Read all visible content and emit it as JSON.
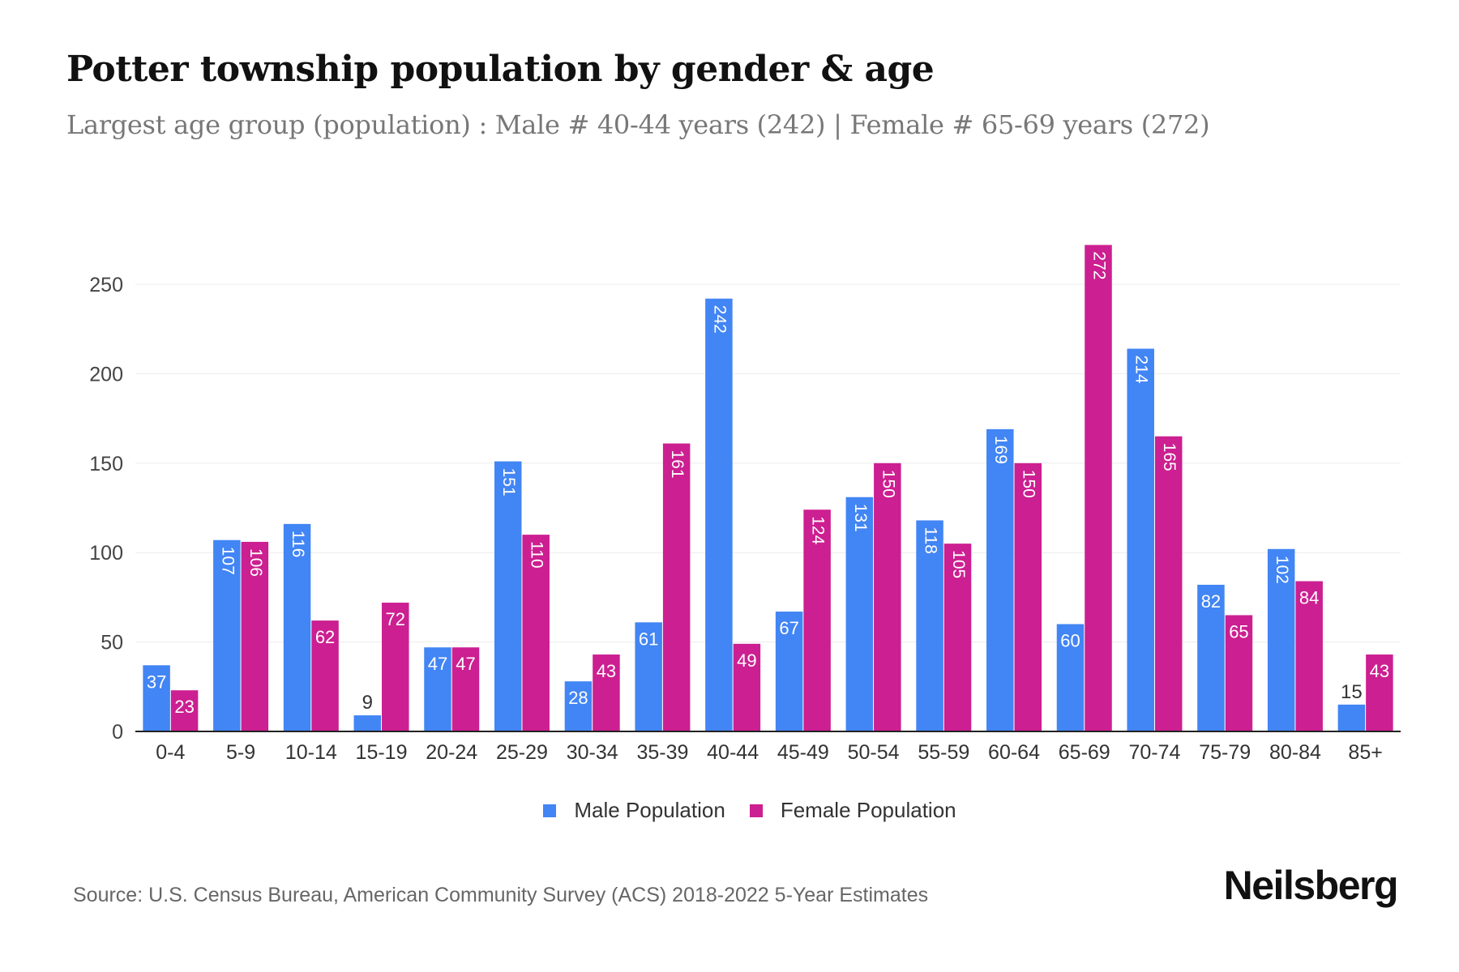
{
  "title": "Potter township population by gender & age",
  "subtitle": "Largest age group (population) : Male # 40-44 years (242) | Female # 65-69 years (272)",
  "source": "Source: U.S. Census Bureau, American Community Survey (ACS) 2018-2022 5-Year Estimates",
  "logo": "Neilsberg",
  "colors": {
    "male": "#4285f4",
    "female": "#cc1f91"
  },
  "chart_data": {
    "type": "bar",
    "title": "Potter township population by gender & age",
    "xlabel": "",
    "ylabel": "",
    "ylim": [
      0,
      275
    ],
    "yticks": [
      0,
      50,
      100,
      150,
      200,
      250
    ],
    "grid": true,
    "legend_position": "bottom",
    "categories": [
      "0-4",
      "5-9",
      "10-14",
      "15-19",
      "20-24",
      "25-29",
      "30-34",
      "35-39",
      "40-44",
      "45-49",
      "50-54",
      "55-59",
      "60-64",
      "65-69",
      "70-74",
      "75-79",
      "80-84",
      "85+"
    ],
    "series": [
      {
        "name": "Male Population",
        "values": [
          37,
          107,
          116,
          9,
          47,
          151,
          28,
          61,
          242,
          67,
          131,
          118,
          169,
          60,
          214,
          82,
          102,
          15
        ]
      },
      {
        "name": "Female Population",
        "values": [
          23,
          106,
          62,
          72,
          47,
          110,
          43,
          161,
          49,
          124,
          150,
          105,
          150,
          272,
          165,
          65,
          84,
          43
        ]
      }
    ]
  }
}
